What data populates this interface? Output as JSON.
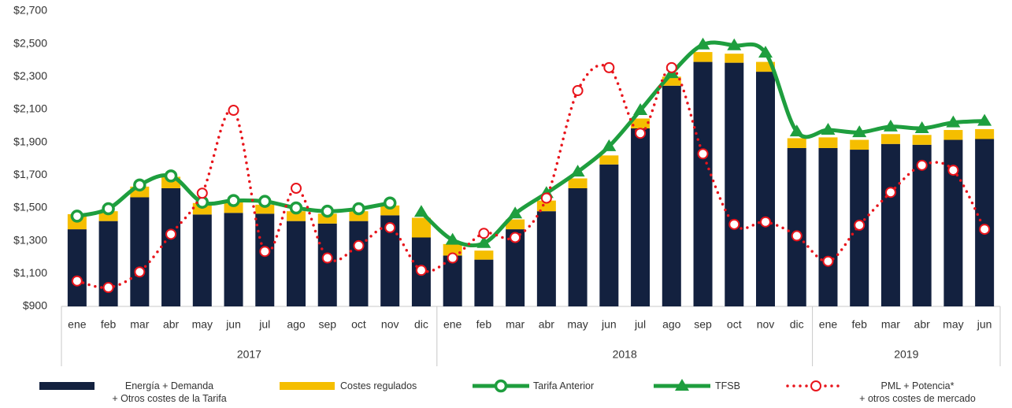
{
  "chart_data": {
    "type": "bar",
    "groups": [
      {
        "name": "2017",
        "categories": [
          "ene",
          "feb",
          "mar",
          "abr",
          "may",
          "jun",
          "jul",
          "ago",
          "sep",
          "oct",
          "nov",
          "dic"
        ]
      },
      {
        "name": "2018",
        "categories": [
          "ene",
          "feb",
          "mar",
          "abr",
          "may",
          "jun",
          "jul",
          "ago",
          "sep",
          "oct",
          "nov",
          "dic"
        ]
      },
      {
        "name": "2019",
        "categories": [
          "ene",
          "feb",
          "mar",
          "abr",
          "may",
          "jun"
        ]
      }
    ],
    "series": [
      {
        "name": "Energía + Demanda\n+ Otros costes de la Tarifa",
        "kind": "bar",
        "color": "#13213f",
        "values": [
          1370,
          1420,
          1565,
          1620,
          1460,
          1470,
          1465,
          1420,
          1405,
          1420,
          1455,
          1320,
          1210,
          1185,
          1370,
          1480,
          1620,
          1765,
          1985,
          2245,
          2390,
          2385,
          2330,
          1865,
          1865,
          1855,
          1890,
          1885,
          1915,
          1920
        ]
      },
      {
        "name": "Costes regulados",
        "kind": "bar",
        "color": "#f5be00",
        "values": [
          92,
          60,
          65,
          70,
          70,
          65,
          55,
          60,
          60,
          60,
          60,
          120,
          70,
          55,
          60,
          65,
          60,
          55,
          60,
          55,
          60,
          55,
          60,
          60,
          65,
          60,
          60,
          60,
          60,
          60
        ]
      },
      {
        "name": "Tarifa Anterior",
        "kind": "line",
        "marker": "circle",
        "color": "#1e9e3e",
        "values": [
          1450,
          1495,
          1640,
          1695,
          1535,
          1545,
          1540,
          1500,
          1480,
          1495,
          1530,
          null,
          null,
          null,
          null,
          null,
          null,
          null,
          null,
          null,
          null,
          null,
          null,
          null,
          null,
          null,
          null,
          null,
          null,
          null
        ]
      },
      {
        "name": "TFSB",
        "kind": "line",
        "marker": "triangle",
        "color": "#1e9e3e",
        "values": [
          null,
          null,
          null,
          null,
          null,
          null,
          null,
          null,
          null,
          null,
          null,
          1475,
          1305,
          1285,
          1465,
          1590,
          1720,
          1875,
          2095,
          2320,
          2495,
          2490,
          2445,
          1965,
          1975,
          1960,
          1995,
          1985,
          2020,
          2030
        ]
      },
      {
        "name": "PML + Potencia*\n+ otros costes de mercado",
        "kind": "dotted",
        "marker": "circle",
        "color": "#e8141b",
        "values": [
          1055,
          1015,
          1110,
          1340,
          1590,
          2095,
          1235,
          1620,
          1195,
          1270,
          1380,
          1120,
          1195,
          1345,
          1320,
          1560,
          2215,
          2355,
          1955,
          2355,
          1830,
          1400,
          1415,
          1330,
          1175,
          1395,
          1595,
          1760,
          1730,
          1370
        ]
      }
    ],
    "ylim": [
      900,
      2700
    ],
    "yticks": [
      {
        "value": 900,
        "label": "$900"
      },
      {
        "value": 1100,
        "label": "$1,100"
      },
      {
        "value": 1300,
        "label": "$1,300"
      },
      {
        "value": 1500,
        "label": "$1,500"
      },
      {
        "value": 1700,
        "label": "$1,700"
      },
      {
        "value": 1900,
        "label": "$1,900"
      },
      {
        "value": 2100,
        "label": "$2,100"
      },
      {
        "value": 2300,
        "label": "$2,300"
      },
      {
        "value": 2500,
        "label": "$2,500"
      },
      {
        "value": 2700,
        "label": "$2,700"
      }
    ],
    "grid": false,
    "legend": "bottom"
  }
}
